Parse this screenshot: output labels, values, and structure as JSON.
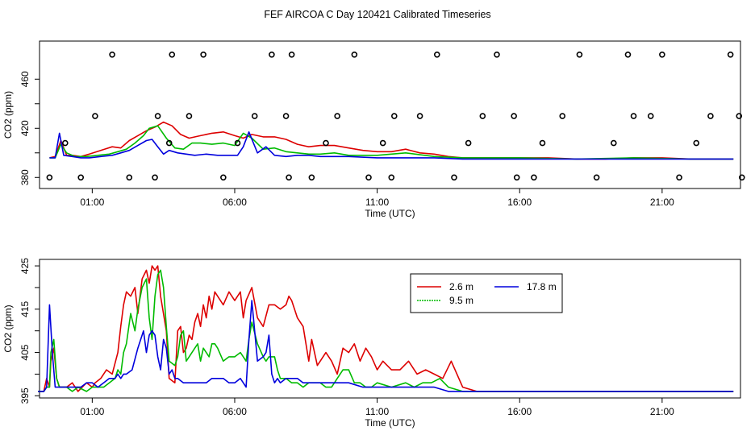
{
  "title": "FEF AIRCOA C  Day 120421  Calibrated Timeseries",
  "colors": {
    "2.6 m": "#dd0000",
    "9.5 m": "#00bb00",
    "17.8 m": "#0000dd",
    "frame": "#000000"
  },
  "chart_data": [
    {
      "type": "line+scatter",
      "xlabel": "Time (UTC)",
      "ylabel": "CO2 (ppm)",
      "xlim": [
        -0.85,
        23.75
      ],
      "ylim": [
        371,
        491
      ],
      "x_ticks": [
        1,
        6,
        11,
        16,
        21
      ],
      "x_tick_labels": [
        "01:00",
        "06:00",
        "11:00",
        "16:00",
        "21:00"
      ],
      "y_ticks": [
        380,
        400,
        420,
        440,
        460
      ],
      "y_tick_labels": [
        "380",
        "420",
        "460"
      ],
      "series": [
        {
          "name": "2.6 m",
          "color": "#dd0000",
          "x": [
            -0.5,
            -0.3,
            -0.1,
            0.1,
            0.3,
            0.6,
            0.9,
            1.3,
            1.7,
            2.0,
            2.3,
            2.6,
            2.9,
            3.2,
            3.5,
            3.8,
            4.1,
            4.4,
            4.8,
            5.2,
            5.6,
            6.0,
            6.3,
            6.6,
            7.0,
            7.4,
            7.8,
            8.2,
            8.6,
            9.0,
            9.5,
            10.0,
            10.5,
            11.0,
            11.5,
            12.0,
            12.5,
            13.0,
            13.5,
            14.0,
            15.0,
            16.0,
            17.0,
            18.0,
            19.0,
            20.0,
            21.0,
            22.0,
            23.0,
            23.5
          ],
          "y": [
            396,
            397,
            410,
            398,
            398,
            397,
            399,
            402,
            405,
            404,
            410,
            414,
            418,
            421,
            425,
            422,
            415,
            412,
            414,
            416,
            417,
            414,
            412,
            415,
            413,
            413,
            411,
            407,
            405,
            406,
            406,
            404,
            402,
            401,
            401,
            403,
            400,
            399,
            397,
            396,
            396,
            396,
            396,
            395,
            395,
            396,
            396,
            395,
            395,
            395
          ]
        },
        {
          "name": "9.5 m",
          "color": "#00bb00",
          "x": [
            -0.5,
            -0.3,
            -0.1,
            0.1,
            0.4,
            0.8,
            1.2,
            1.6,
            1.9,
            2.2,
            2.5,
            2.8,
            3.0,
            3.3,
            3.6,
            3.9,
            4.2,
            4.5,
            4.8,
            5.2,
            5.6,
            6.0,
            6.3,
            6.6,
            7.0,
            7.4,
            7.8,
            8.2,
            8.6,
            9.0,
            9.5,
            10.0,
            11.0,
            12.0,
            13.0,
            14.0,
            16.0,
            18.0,
            20.0,
            22.0,
            23.5
          ],
          "y": [
            396,
            396,
            407,
            400,
            397,
            397,
            398,
            399,
            401,
            403,
            408,
            414,
            420,
            422,
            412,
            404,
            403,
            408,
            408,
            407,
            408,
            406,
            416,
            412,
            403,
            404,
            401,
            400,
            399,
            399,
            400,
            398,
            398,
            400,
            397,
            396,
            396,
            395,
            396,
            395,
            395
          ]
        },
        {
          "name": "17.8 m",
          "color": "#0000dd",
          "x": [
            -0.5,
            -0.3,
            -0.15,
            0.0,
            0.3,
            0.6,
            0.9,
            1.3,
            1.7,
            2.0,
            2.3,
            2.6,
            2.9,
            3.1,
            3.3,
            3.5,
            3.7,
            4.0,
            4.3,
            4.6,
            5.0,
            5.4,
            5.8,
            6.1,
            6.3,
            6.5,
            6.8,
            7.1,
            7.4,
            7.8,
            8.2,
            8.6,
            9.0,
            10.0,
            11.0,
            12.0,
            13.0,
            14.0,
            16.0,
            18.0,
            20.0,
            22.0,
            23.5
          ],
          "y": [
            396,
            396,
            416,
            398,
            397,
            396,
            396,
            397,
            398,
            400,
            402,
            406,
            410,
            411,
            405,
            399,
            402,
            400,
            399,
            398,
            399,
            398,
            398,
            398,
            405,
            417,
            400,
            405,
            398,
            397,
            398,
            398,
            397,
            397,
            396,
            396,
            396,
            395,
            395,
            395,
            395,
            395,
            395
          ]
        }
      ],
      "flag_points": {
        "marker": "open-circle",
        "x": [
          -0.5,
          0.05,
          0.6,
          1.1,
          1.7,
          2.3,
          3.2,
          3.3,
          3.7,
          3.8,
          4.4,
          4.9,
          5.6,
          6.1,
          6.7,
          7.3,
          7.8,
          7.9,
          8.0,
          8.7,
          9.2,
          9.6,
          10.2,
          10.7,
          11.2,
          11.5,
          11.6,
          12.5,
          13.1,
          13.7,
          14.2,
          14.7,
          15.2,
          15.8,
          15.9,
          16.5,
          16.8,
          17.5,
          18.1,
          18.7,
          19.3,
          19.8,
          20.0,
          20.6,
          21.0,
          21.6,
          22.2,
          22.7,
          23.4,
          23.7,
          23.8
        ],
        "y": [
          380,
          408,
          380,
          430,
          480,
          380,
          380,
          430,
          408,
          480,
          430,
          480,
          380,
          408,
          430,
          480,
          430,
          380,
          480,
          380,
          408,
          430,
          480,
          380,
          408,
          380,
          430,
          430,
          480,
          380,
          408,
          430,
          480,
          430,
          380,
          380,
          408,
          430,
          480,
          380,
          408,
          480,
          430,
          430,
          480,
          380,
          408,
          430,
          480,
          430,
          380
        ]
      }
    },
    {
      "type": "line",
      "xlabel": "Time (UTC)",
      "ylabel": "CO2 (ppm)",
      "xlim": [
        -0.85,
        23.75
      ],
      "ylim": [
        394.5,
        426.5
      ],
      "x_ticks": [
        1,
        6,
        11,
        16,
        21
      ],
      "x_tick_labels": [
        "01:00",
        "06:00",
        "11:00",
        "16:00",
        "21:00"
      ],
      "y_ticks": [
        395,
        400,
        405,
        410,
        415,
        420,
        425
      ],
      "y_tick_labels": [
        "395",
        "405",
        "415",
        "425"
      ],
      "legend": {
        "placement": "top-center",
        "entries": [
          "2.6 m",
          "17.8 m",
          "9.5 m"
        ]
      },
      "series": [
        {
          "name": "2.6 m",
          "color": "#dd0000",
          "x": [
            -0.9,
            -0.7,
            -0.6,
            -0.5,
            -0.45,
            -0.35,
            -0.25,
            -0.15,
            -0.05,
            0.1,
            0.3,
            0.5,
            0.8,
            1.0,
            1.1,
            1.3,
            1.5,
            1.7,
            1.9,
            2.0,
            2.1,
            2.2,
            2.35,
            2.5,
            2.6,
            2.75,
            2.9,
            3.0,
            3.1,
            3.2,
            3.3,
            3.4,
            3.6,
            3.7,
            3.9,
            4.0,
            4.1,
            4.2,
            4.3,
            4.4,
            4.5,
            4.6,
            4.7,
            4.8,
            4.9,
            5.0,
            5.1,
            5.2,
            5.3,
            5.4,
            5.6,
            5.8,
            6.0,
            6.2,
            6.3,
            6.4,
            6.6,
            6.8,
            7.0,
            7.2,
            7.4,
            7.6,
            7.8,
            7.9,
            8.0,
            8.2,
            8.4,
            8.6,
            8.7,
            8.9,
            9.0,
            9.2,
            9.4,
            9.6,
            9.8,
            10.0,
            10.2,
            10.4,
            10.6,
            10.8,
            11.0,
            11.2,
            11.5,
            11.8,
            12.1,
            12.4,
            12.7,
            13.0,
            13.3,
            13.6,
            14.0,
            14.5,
            15.0,
            16.0,
            17.0,
            18.0,
            19.0,
            20.0,
            21.0,
            22.0,
            23.0,
            23.5
          ],
          "y": [
            396,
            396,
            399,
            397,
            403,
            406,
            399,
            397,
            397,
            397,
            398,
            396,
            398,
            397,
            398,
            399,
            401,
            400,
            405,
            411,
            416,
            419,
            418,
            420,
            414,
            422,
            424,
            421,
            425,
            424,
            425,
            418,
            410,
            399,
            398,
            410,
            411,
            405,
            406,
            409,
            408,
            412,
            414,
            411,
            416,
            413,
            418,
            415,
            419,
            418,
            416,
            419,
            417,
            419,
            413,
            417,
            420,
            413,
            411,
            416,
            416,
            415,
            416,
            418,
            417,
            413,
            411,
            403,
            408,
            402,
            403,
            405,
            403,
            400,
            406,
            405,
            407,
            403,
            406,
            404,
            401,
            403,
            401,
            401,
            403,
            400,
            401,
            400,
            399,
            403,
            397,
            396,
            396,
            396,
            396,
            396,
            396,
            396,
            396,
            396,
            396,
            396
          ]
        },
        {
          "name": "9.5 m",
          "color": "#00bb00",
          "x": [
            -0.9,
            -0.7,
            -0.6,
            -0.5,
            -0.45,
            -0.35,
            -0.25,
            -0.15,
            -0.05,
            0.1,
            0.3,
            0.5,
            0.8,
            1.0,
            1.2,
            1.4,
            1.6,
            1.8,
            1.9,
            2.0,
            2.1,
            2.2,
            2.35,
            2.5,
            2.6,
            2.75,
            2.9,
            3.0,
            3.1,
            3.2,
            3.3,
            3.4,
            3.5,
            3.6,
            3.7,
            3.9,
            4.0,
            4.1,
            4.2,
            4.3,
            4.4,
            4.5,
            4.6,
            4.7,
            4.8,
            4.9,
            5.0,
            5.1,
            5.2,
            5.3,
            5.4,
            5.6,
            5.8,
            6.0,
            6.2,
            6.3,
            6.4,
            6.5,
            6.6,
            6.8,
            7.0,
            7.1,
            7.2,
            7.4,
            7.5,
            7.6,
            7.8,
            8.0,
            8.2,
            8.4,
            8.6,
            8.8,
            9.0,
            9.2,
            9.4,
            9.6,
            9.8,
            10.0,
            10.2,
            10.4,
            10.6,
            10.8,
            11.0,
            11.5,
            12.0,
            12.3,
            12.6,
            12.9,
            13.2,
            13.5,
            14.0,
            14.5,
            15.0,
            16.0,
            17.0,
            18.0,
            19.0,
            20.0,
            21.0,
            22.0,
            23.0,
            23.5
          ],
          "y": [
            396,
            396,
            397,
            397,
            405,
            408,
            399,
            397,
            397,
            397,
            396,
            397,
            396,
            397,
            397,
            397,
            398,
            399,
            401,
            400,
            405,
            407,
            414,
            410,
            415,
            420,
            422,
            413,
            408,
            418,
            423,
            424,
            420,
            411,
            403,
            402,
            404,
            409,
            410,
            403,
            404,
            405,
            406,
            407,
            403,
            406,
            405,
            404,
            407,
            407,
            406,
            403,
            404,
            404,
            405,
            404,
            403,
            408,
            412,
            407,
            404,
            403,
            404,
            404,
            401,
            399,
            399,
            398,
            398,
            397,
            398,
            398,
            398,
            397,
            397,
            399,
            401,
            401,
            398,
            398,
            397,
            397,
            398,
            397,
            398,
            397,
            398,
            398,
            399,
            397,
            396,
            396,
            396,
            396,
            396,
            396,
            396,
            396,
            396,
            396,
            396,
            396
          ]
        },
        {
          "name": "17.8 m",
          "color": "#0000dd",
          "x": [
            -0.9,
            -0.7,
            -0.6,
            -0.5,
            -0.4,
            -0.3,
            -0.2,
            -0.1,
            0.0,
            0.2,
            0.4,
            0.6,
            0.8,
            1.0,
            1.2,
            1.4,
            1.6,
            1.8,
            1.9,
            2.0,
            2.1,
            2.2,
            2.4,
            2.6,
            2.8,
            2.9,
            3.0,
            3.1,
            3.2,
            3.3,
            3.4,
            3.5,
            3.6,
            3.7,
            3.8,
            3.9,
            4.0,
            4.2,
            4.4,
            4.6,
            4.8,
            5.0,
            5.2,
            5.4,
            5.6,
            5.8,
            6.0,
            6.2,
            6.3,
            6.4,
            6.5,
            6.6,
            6.7,
            6.8,
            7.0,
            7.1,
            7.2,
            7.3,
            7.4,
            7.5,
            7.6,
            7.8,
            8.0,
            8.2,
            8.4,
            8.6,
            8.8,
            9.0,
            9.5,
            10.0,
            10.5,
            11.0,
            11.5,
            12.0,
            12.5,
            13.0,
            13.5,
            14.0,
            14.5,
            15.0,
            16.0,
            17.0,
            18.0,
            19.0,
            20.0,
            21.0,
            22.0,
            23.0,
            23.5
          ],
          "y": [
            396,
            396,
            397,
            416,
            405,
            397,
            397,
            397,
            397,
            397,
            397,
            397,
            398,
            398,
            397,
            398,
            399,
            399,
            400,
            399,
            400,
            400,
            401,
            406,
            410,
            405,
            409,
            410,
            409,
            404,
            401,
            408,
            406,
            400,
            401,
            399,
            399,
            398,
            398,
            398,
            398,
            398,
            399,
            399,
            399,
            398,
            398,
            399,
            398,
            397,
            408,
            417,
            410,
            403,
            404,
            405,
            409,
            400,
            398,
            399,
            398,
            399,
            399,
            399,
            398,
            398,
            398,
            398,
            398,
            398,
            397,
            397,
            397,
            397,
            397,
            397,
            396,
            396,
            396,
            396,
            396,
            396,
            396,
            396,
            396,
            396,
            396,
            396,
            396
          ]
        }
      ]
    }
  ]
}
